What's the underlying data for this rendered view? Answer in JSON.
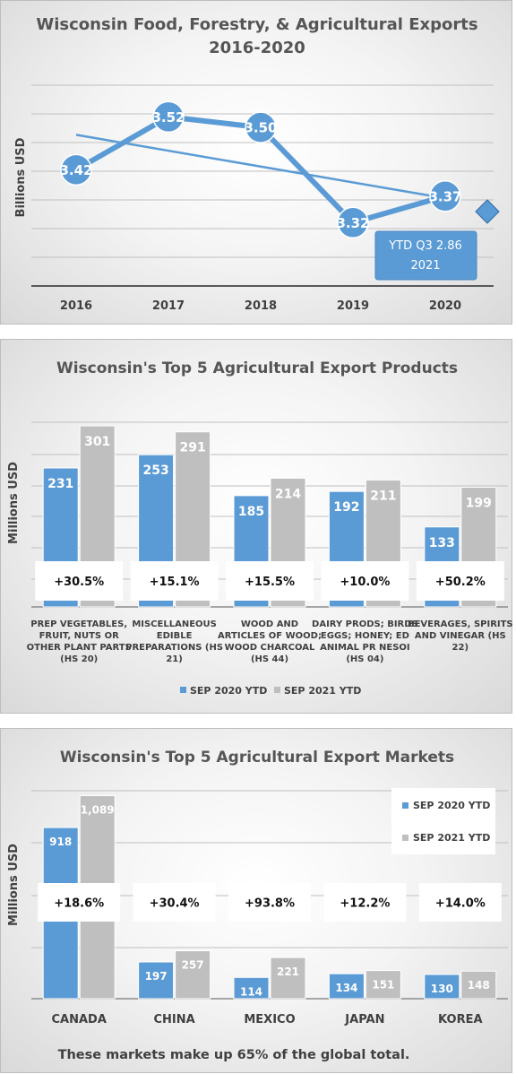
{
  "colors": {
    "blue": "#5b9bd5",
    "gray": "#bfbfbf",
    "gray_label": "#a6a6a6",
    "text": "#404040"
  },
  "chart_data": [
    {
      "type": "line",
      "title": "Wisconsin Food, Forestry, & Agricultural Exports",
      "subtitle": "2016-2020",
      "xlabel": "",
      "ylabel": "Billions USD",
      "x": [
        "2016",
        "2017",
        "2018",
        "2019",
        "2020"
      ],
      "series": [
        {
          "name": "",
          "values": [
            3.42,
            3.52,
            3.5,
            3.32,
            3.37
          ]
        }
      ],
      "value_labels": [
        "3.42",
        "3.52",
        "3.50",
        "3.32",
        "3.37"
      ],
      "trendline": true,
      "ylim": [
        3.2,
        3.58
      ],
      "grid": true,
      "callout": {
        "line1": "YTD Q3 2.86",
        "line2": "2021",
        "value": 2.86
      }
    },
    {
      "type": "bar",
      "title": "Wisconsin's Top 5 Agricultural Export Products",
      "xlabel": "",
      "ylabel": "Millions USD",
      "categories": [
        [
          "PREP VEGETABLES,",
          "FRUIT, NUTS OR",
          "OTHER PLANT PARTS",
          "(HS 20)"
        ],
        [
          "MISCELLANEOUS",
          "EDIBLE",
          "PREPARATIONS (HS",
          "21)"
        ],
        [
          "WOOD AND",
          "ARTICLES OF WOOD;",
          "WOOD CHARCOAL",
          "(HS 44)"
        ],
        [
          "DAIRY PRODS; BIRDS",
          "EGGS; HONEY; ED",
          "ANIMAL PR NESOI",
          "(HS 04)"
        ],
        [
          "BEVERAGES, SPIRITS",
          "AND VINEGAR (HS",
          "22)"
        ]
      ],
      "series": [
        {
          "name": "SEP 2020 YTD",
          "values": [
            231,
            253,
            185,
            192,
            133
          ],
          "labels": [
            "231",
            "253",
            "185",
            "192",
            "133"
          ]
        },
        {
          "name": "SEP 2021 YTD",
          "values": [
            301,
            291,
            214,
            211,
            199
          ],
          "labels": [
            "301",
            "291",
            "214",
            "211",
            "199"
          ]
        }
      ],
      "growth": [
        "+30.5%",
        "+15.1%",
        "+15.5%",
        "+10.0%",
        "+50.2%"
      ],
      "ylim": [
        0,
        310
      ],
      "grid": true,
      "legend": "bottom"
    },
    {
      "type": "bar",
      "title": "Wisconsin's Top 5 Agricultural Export Markets",
      "xlabel": "",
      "ylabel": "Millions USD",
      "categories": [
        "CANADA",
        "CHINA",
        "MEXICO",
        "JAPAN",
        "KOREA"
      ],
      "series": [
        {
          "name": "SEP 2020 YTD",
          "values": [
            918,
            197,
            114,
            134,
            130
          ],
          "labels": [
            "918",
            "197",
            "114",
            "134",
            "130"
          ]
        },
        {
          "name": "SEP 2021 YTD",
          "values": [
            1089,
            257,
            221,
            151,
            148
          ],
          "labels": [
            "1,089",
            "257",
            "221",
            "151",
            "148"
          ]
        }
      ],
      "growth": [
        "+18.6%",
        "+30.4%",
        "+93.8%",
        "+12.2%",
        "+14.0%"
      ],
      "ylim": [
        0,
        1130
      ],
      "grid": true,
      "legend": "top-right",
      "footnote": "These markets make up 65% of the global total."
    }
  ]
}
